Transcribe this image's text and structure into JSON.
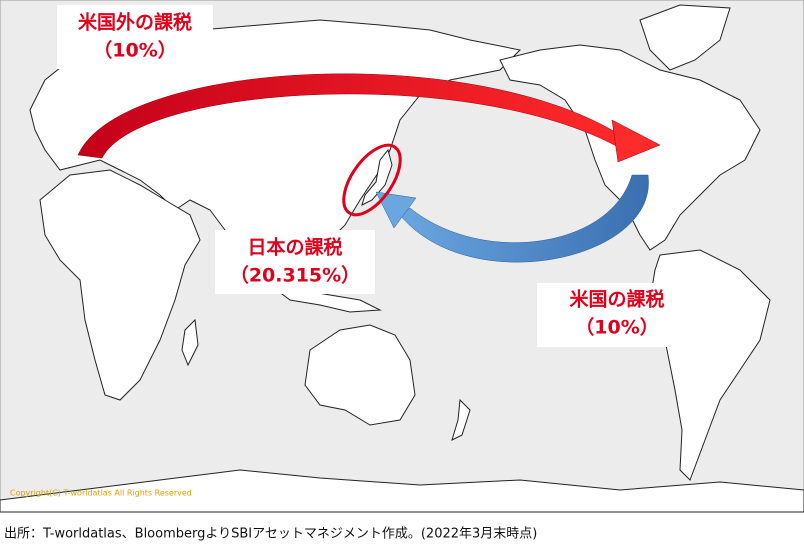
{
  "labels": [
    {
      "title": "米国外の課税",
      "rate": "（10%）"
    },
    {
      "title": "日本の課税",
      "rate": "（20.315%）"
    },
    {
      "title": "米国の課税",
      "rate": "（10%）"
    }
  ],
  "copyright": "Copyright(C) T-worldatlas All Rights Reserved",
  "footer": "出所：T-worldatlas、BloombergよりSBIアセットマネジメント作成。(2022年3月末時点)"
}
